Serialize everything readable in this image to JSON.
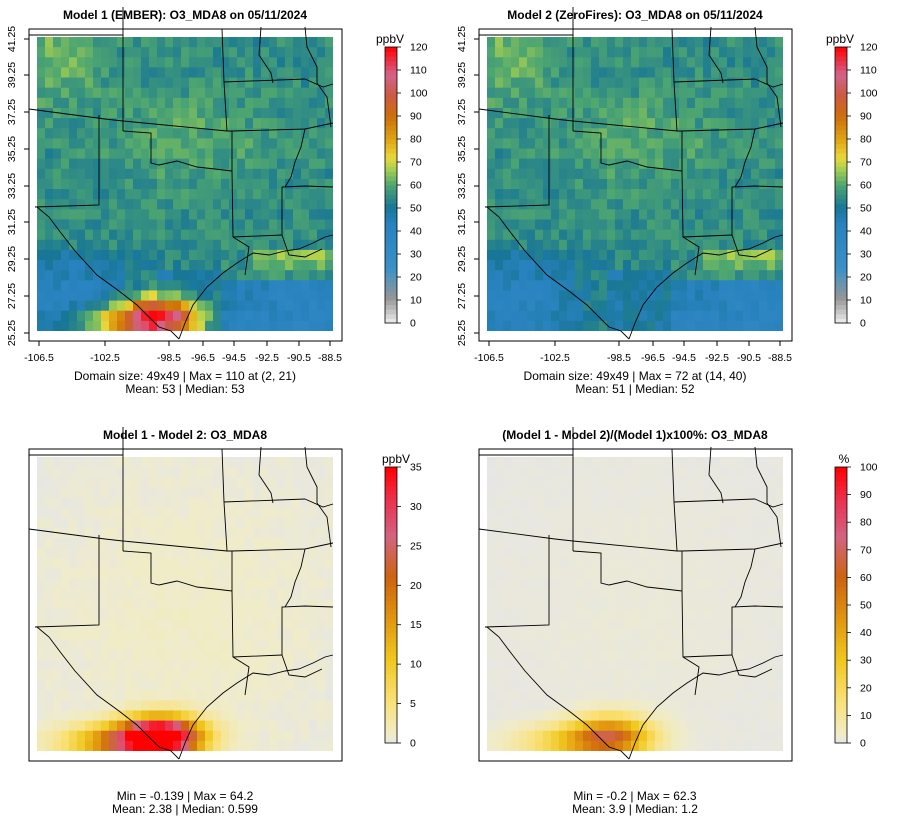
{
  "chart_data": [
    {
      "type": "heatmap",
      "title": "Model 1 (EMBER): O3_MDA8 on 05/11/2024",
      "units": "ppbV",
      "x_ticks": [
        "-106.5",
        "-102.5",
        "-98.5",
        "-96.5",
        "-94.5",
        "-92.5",
        "-90.5",
        "-88.5"
      ],
      "y_ticks": [
        "25.25",
        "27.25",
        "29.25",
        "31.25",
        "33.25",
        "35.25",
        "37.25",
        "39.25",
        "41.25"
      ],
      "colorbar": {
        "ticks": [
          "0",
          "10",
          "20",
          "30",
          "40",
          "50",
          "60",
          "70",
          "80",
          "90",
          "100",
          "110",
          "120"
        ],
        "range": [
          0,
          120
        ]
      },
      "stats_line1": "Domain size: 49x49 | Max = 110 at (2, 21)",
      "stats_line2": "Mean: 53 |  Median: 53",
      "grid_size": "49x49",
      "mean": 53,
      "median": 53,
      "max": 110
    },
    {
      "type": "heatmap",
      "title": "Model 2 (ZeroFires): O3_MDA8 on 05/11/2024",
      "units": "ppbV",
      "x_ticks": [
        "-106.5",
        "-102.5",
        "-98.5",
        "-96.5",
        "-94.5",
        "-92.5",
        "-90.5",
        "-88.5"
      ],
      "y_ticks": [
        "25.25",
        "27.25",
        "29.25",
        "31.25",
        "33.25",
        "35.25",
        "37.25",
        "39.25",
        "41.25"
      ],
      "colorbar": {
        "ticks": [
          "0",
          "10",
          "20",
          "30",
          "40",
          "50",
          "60",
          "70",
          "80",
          "90",
          "100",
          "110",
          "120"
        ],
        "range": [
          0,
          120
        ]
      },
      "stats_line1": "Domain size: 49x49 | Max = 72 at (14, 40)",
      "stats_line2": "Mean: 51 |  Median: 52",
      "grid_size": "49x49",
      "mean": 51,
      "median": 52,
      "max": 72
    },
    {
      "type": "heatmap",
      "title": "Model 1 - Model 2: O3_MDA8",
      "units": "ppbV",
      "colorbar": {
        "ticks": [
          "0",
          "5",
          "10",
          "15",
          "20",
          "25",
          "30",
          "35"
        ],
        "range": [
          0,
          35
        ]
      },
      "stats_line1": "Min = -0.139 | Max = 64.2",
      "stats_line2": "Mean: 2.38 |  Median: 0.599",
      "min": -0.139,
      "max": 64.2,
      "mean": 2.38,
      "median": 0.599
    },
    {
      "type": "heatmap",
      "title": "(Model 1 - Model 2)/(Model 1)x100%: O3_MDA8",
      "units": "%",
      "colorbar": {
        "ticks": [
          "0",
          "10",
          "20",
          "30",
          "40",
          "50",
          "60",
          "70",
          "80",
          "90",
          "100"
        ],
        "range": [
          0,
          100
        ]
      },
      "stats_line1": "Min = -0.2 | Max = 62.3",
      "stats_line2": "Mean: 3.9 |  Median: 1.2",
      "min": -0.2,
      "max": 62.3,
      "mean": 3.9,
      "median": 1.2
    }
  ]
}
